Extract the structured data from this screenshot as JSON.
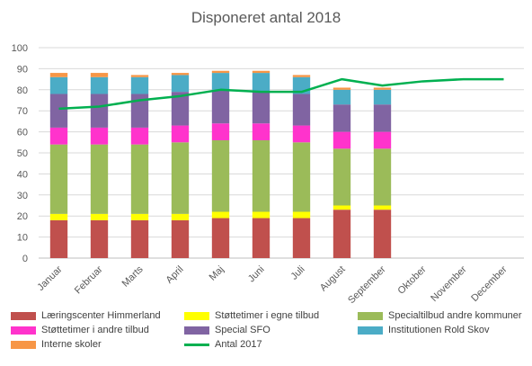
{
  "chart_data": {
    "type": "bar",
    "title": "Disponeret  antal 2018",
    "categories": [
      "Januar",
      "Februar",
      "Marts",
      "April",
      "Maj",
      "Juni",
      "Juli",
      "August",
      "September",
      "Oktober",
      "November",
      "December"
    ],
    "ylim": [
      0,
      100
    ],
    "yticks": [
      "0",
      "10",
      "20",
      "30",
      "40",
      "50",
      "60",
      "70",
      "80",
      "90",
      "100"
    ],
    "grid": true,
    "legend_position": "bottom",
    "series": [
      {
        "name": "Læringscenter Himmerland",
        "type": "bar",
        "color": "#c0504d",
        "values": [
          18,
          18,
          18,
          18,
          19,
          19,
          19,
          23,
          23,
          null,
          null,
          null
        ]
      },
      {
        "name": "Støttetimer i egne tilbud",
        "type": "bar",
        "color": "#ffff00",
        "values": [
          3,
          3,
          3,
          3,
          3,
          3,
          3,
          2,
          2,
          null,
          null,
          null
        ]
      },
      {
        "name": "Specialtilbud andre kommuner",
        "type": "bar",
        "color": "#9bbb59",
        "values": [
          33,
          33,
          33,
          34,
          34,
          34,
          33,
          27,
          27,
          null,
          null,
          null
        ]
      },
      {
        "name": "Støttetimer i andre tilbud",
        "type": "bar",
        "color": "#ff33cc",
        "values": [
          8,
          8,
          8,
          8,
          8,
          8,
          8,
          8,
          8,
          null,
          null,
          null
        ]
      },
      {
        "name": "Special SFO",
        "type": "bar",
        "color": "#8064a2",
        "values": [
          16,
          16,
          16,
          16,
          16,
          15,
          15,
          13,
          13,
          null,
          null,
          null
        ]
      },
      {
        "name": "Institutionen Rold Skov",
        "type": "bar",
        "color": "#4bacc6",
        "values": [
          8,
          8,
          8,
          8,
          8,
          9,
          8,
          7,
          7,
          null,
          null,
          null
        ]
      },
      {
        "name": "Interne skoler",
        "type": "bar",
        "color": "#f79646",
        "values": [
          2,
          2,
          1,
          1,
          1,
          1,
          1,
          1,
          1,
          null,
          null,
          null
        ]
      },
      {
        "name": "Antal 2017",
        "type": "line",
        "color": "#00b050",
        "values": [
          71,
          72,
          75,
          77,
          80,
          79,
          79,
          85,
          82,
          84,
          85,
          85
        ]
      }
    ]
  }
}
